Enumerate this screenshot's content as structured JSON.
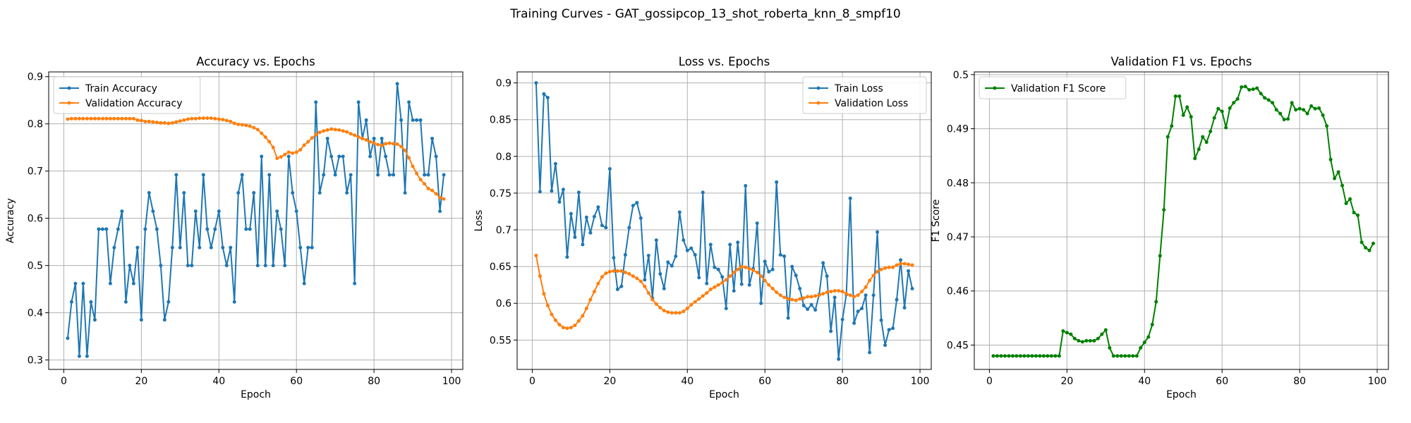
{
  "figure": {
    "suptitle": "Training Curves - GAT_gossipcop_13_shot_roberta_knn_8_smpf10"
  },
  "colors": {
    "train": "#1f77b4",
    "val": "#ff7f0e",
    "f1": "#008000",
    "grid": "#b0b0b0"
  },
  "chart_data": [
    {
      "type": "line",
      "title": "Accuracy vs. Epochs",
      "xlabel": "Epoch",
      "ylabel": "Accuracy",
      "xlim": [
        -3.9,
        102.9
      ],
      "ylim": [
        0.28,
        0.91
      ],
      "xticks": [
        0,
        20,
        40,
        60,
        80,
        100
      ],
      "yticks": [
        0.3,
        0.4,
        0.5,
        0.6,
        0.7,
        0.8,
        0.9
      ],
      "grid": true,
      "legend": "upper left",
      "series": [
        {
          "name": "Train Accuracy",
          "color": "#1f77b4",
          "values": [
            0.346,
            0.423,
            0.462,
            0.308,
            0.462,
            0.308,
            0.423,
            0.385,
            0.577,
            0.577,
            0.577,
            0.462,
            0.538,
            0.577,
            0.615,
            0.423,
            0.5,
            0.462,
            0.538,
            0.385,
            0.577,
            0.654,
            0.615,
            0.577,
            0.5,
            0.385,
            0.423,
            0.538,
            0.692,
            0.538,
            0.654,
            0.5,
            0.5,
            0.615,
            0.538,
            0.692,
            0.577,
            0.538,
            0.577,
            0.615,
            0.538,
            0.5,
            0.538,
            0.423,
            0.654,
            0.692,
            0.577,
            0.577,
            0.654,
            0.5,
            0.731,
            0.5,
            0.692,
            0.5,
            0.615,
            0.577,
            0.5,
            0.731,
            0.654,
            0.615,
            0.538,
            0.462,
            0.538,
            0.538,
            0.846,
            0.654,
            0.692,
            0.769,
            0.731,
            0.692,
            0.731,
            0.731,
            0.654,
            0.692,
            0.462,
            0.846,
            0.769,
            0.808,
            0.731,
            0.769,
            0.692,
            0.769,
            0.731,
            0.692,
            0.692,
            0.885,
            0.808,
            0.654,
            0.846,
            0.808,
            0.808,
            0.808,
            0.692,
            0.692,
            0.769,
            0.731,
            0.615,
            0.692
          ]
        },
        {
          "name": "Validation Accuracy",
          "color": "#ff7f0e",
          "values": [
            0.81,
            0.811,
            0.811,
            0.811,
            0.811,
            0.811,
            0.811,
            0.811,
            0.811,
            0.811,
            0.811,
            0.811,
            0.811,
            0.811,
            0.811,
            0.811,
            0.811,
            0.811,
            0.808,
            0.807,
            0.805,
            0.805,
            0.804,
            0.803,
            0.802,
            0.802,
            0.801,
            0.802,
            0.804,
            0.806,
            0.808,
            0.81,
            0.811,
            0.811,
            0.812,
            0.812,
            0.812,
            0.812,
            0.811,
            0.81,
            0.809,
            0.807,
            0.805,
            0.801,
            0.799,
            0.798,
            0.797,
            0.795,
            0.792,
            0.788,
            0.78,
            0.772,
            0.762,
            0.75,
            0.727,
            0.73,
            0.735,
            0.74,
            0.738,
            0.74,
            0.745,
            0.755,
            0.762,
            0.77,
            0.777,
            0.782,
            0.785,
            0.787,
            0.789,
            0.788,
            0.787,
            0.785,
            0.783,
            0.779,
            0.776,
            0.772,
            0.769,
            0.766,
            0.762,
            0.759,
            0.756,
            0.754,
            0.758,
            0.759,
            0.758,
            0.757,
            0.752,
            0.744,
            0.728,
            0.71,
            0.695,
            0.682,
            0.673,
            0.663,
            0.659,
            0.652,
            0.644,
            0.641
          ]
        }
      ]
    },
    {
      "type": "line",
      "title": "Loss vs. Epochs",
      "xlabel": "Epoch",
      "ylabel": "Loss",
      "xlim": [
        -3.9,
        102.9
      ],
      "ylim": [
        0.51,
        0.915
      ],
      "xticks": [
        0,
        20,
        40,
        60,
        80,
        100
      ],
      "yticks": [
        0.55,
        0.6,
        0.65,
        0.7,
        0.75,
        0.8,
        0.85,
        0.9
      ],
      "grid": true,
      "legend": "upper right",
      "series": [
        {
          "name": "Train Loss",
          "color": "#1f77b4",
          "values": [
            0.9,
            0.752,
            0.885,
            0.88,
            0.753,
            0.79,
            0.738,
            0.755,
            0.663,
            0.722,
            0.69,
            0.751,
            0.68,
            0.717,
            0.696,
            0.718,
            0.731,
            0.706,
            0.703,
            0.783,
            0.662,
            0.619,
            0.623,
            0.666,
            0.703,
            0.733,
            0.737,
            0.716,
            0.632,
            0.665,
            0.607,
            0.686,
            0.64,
            0.62,
            0.656,
            0.651,
            0.664,
            0.724,
            0.686,
            0.672,
            0.675,
            0.666,
            0.635,
            0.751,
            0.627,
            0.68,
            0.649,
            0.646,
            0.636,
            0.593,
            0.68,
            0.617,
            0.683,
            0.626,
            0.76,
            0.625,
            0.647,
            0.709,
            0.6,
            0.657,
            0.643,
            0.646,
            0.765,
            0.666,
            0.664,
            0.58,
            0.65,
            0.638,
            0.62,
            0.597,
            0.592,
            0.598,
            0.591,
            0.612,
            0.655,
            0.637,
            0.562,
            0.608,
            0.524,
            0.578,
            0.612,
            0.743,
            0.573,
            0.589,
            0.593,
            0.611,
            0.533,
            0.611,
            0.697,
            0.577,
            0.543,
            0.564,
            0.566,
            0.605,
            0.659,
            0.594,
            0.644,
            0.62
          ]
        },
        {
          "name": "Validation Loss",
          "color": "#ff7f0e",
          "values": [
            0.665,
            0.637,
            0.613,
            0.597,
            0.585,
            0.577,
            0.571,
            0.567,
            0.566,
            0.567,
            0.57,
            0.576,
            0.583,
            0.593,
            0.605,
            0.616,
            0.627,
            0.636,
            0.641,
            0.643,
            0.644,
            0.644,
            0.644,
            0.642,
            0.64,
            0.637,
            0.634,
            0.63,
            0.623,
            0.614,
            0.605,
            0.599,
            0.594,
            0.59,
            0.588,
            0.587,
            0.587,
            0.587,
            0.589,
            0.593,
            0.598,
            0.602,
            0.606,
            0.61,
            0.614,
            0.619,
            0.622,
            0.625,
            0.628,
            0.632,
            0.637,
            0.642,
            0.646,
            0.65,
            0.649,
            0.647,
            0.645,
            0.642,
            0.637,
            0.631,
            0.625,
            0.62,
            0.615,
            0.611,
            0.608,
            0.606,
            0.605,
            0.604,
            0.606,
            0.607,
            0.609,
            0.609,
            0.61,
            0.611,
            0.613,
            0.615,
            0.616,
            0.617,
            0.617,
            0.616,
            0.613,
            0.611,
            0.609,
            0.611,
            0.616,
            0.622,
            0.631,
            0.638,
            0.643,
            0.646,
            0.648,
            0.649,
            0.649,
            0.652,
            0.654,
            0.654,
            0.653,
            0.652
          ]
        }
      ]
    },
    {
      "type": "line",
      "title": "Validation F1 vs. Epochs",
      "xlabel": "Epoch",
      "ylabel": "F1 Score",
      "xlim": [
        -3.9,
        102.9
      ],
      "ylim": [
        0.4455,
        0.5005
      ],
      "xticks": [
        0,
        20,
        40,
        60,
        80,
        100
      ],
      "yticks": [
        0.45,
        0.46,
        0.47,
        0.48,
        0.49,
        0.5
      ],
      "grid": true,
      "legend": "upper left",
      "series": [
        {
          "name": "Validation F1 Score",
          "color": "#008000",
          "values": [
            0.448,
            0.448,
            0.448,
            0.448,
            0.448,
            0.448,
            0.448,
            0.448,
            0.448,
            0.448,
            0.448,
            0.448,
            0.448,
            0.448,
            0.448,
            0.448,
            0.448,
            0.448,
            0.4526,
            0.4523,
            0.452,
            0.4512,
            0.4508,
            0.4506,
            0.4508,
            0.4508,
            0.4508,
            0.4512,
            0.452,
            0.4528,
            0.4495,
            0.448,
            0.448,
            0.448,
            0.448,
            0.448,
            0.448,
            0.448,
            0.4495,
            0.4505,
            0.4515,
            0.4538,
            0.458,
            0.4665,
            0.475,
            0.4885,
            0.4905,
            0.496,
            0.496,
            0.4925,
            0.494,
            0.4922,
            0.4845,
            0.4862,
            0.4885,
            0.4875,
            0.4895,
            0.492,
            0.4937,
            0.4932,
            0.4902,
            0.4938,
            0.4948,
            0.4955,
            0.4977,
            0.4978,
            0.4972,
            0.4973,
            0.4975,
            0.4965,
            0.4957,
            0.4953,
            0.4948,
            0.4935,
            0.4928,
            0.4917,
            0.4918,
            0.4948,
            0.4935,
            0.4937,
            0.4935,
            0.4928,
            0.4942,
            0.4937,
            0.4938,
            0.4925,
            0.4905,
            0.4843,
            0.4808,
            0.482,
            0.4795,
            0.4762,
            0.477,
            0.4745,
            0.474,
            0.469,
            0.468,
            0.4675,
            0.4688
          ]
        }
      ]
    }
  ]
}
